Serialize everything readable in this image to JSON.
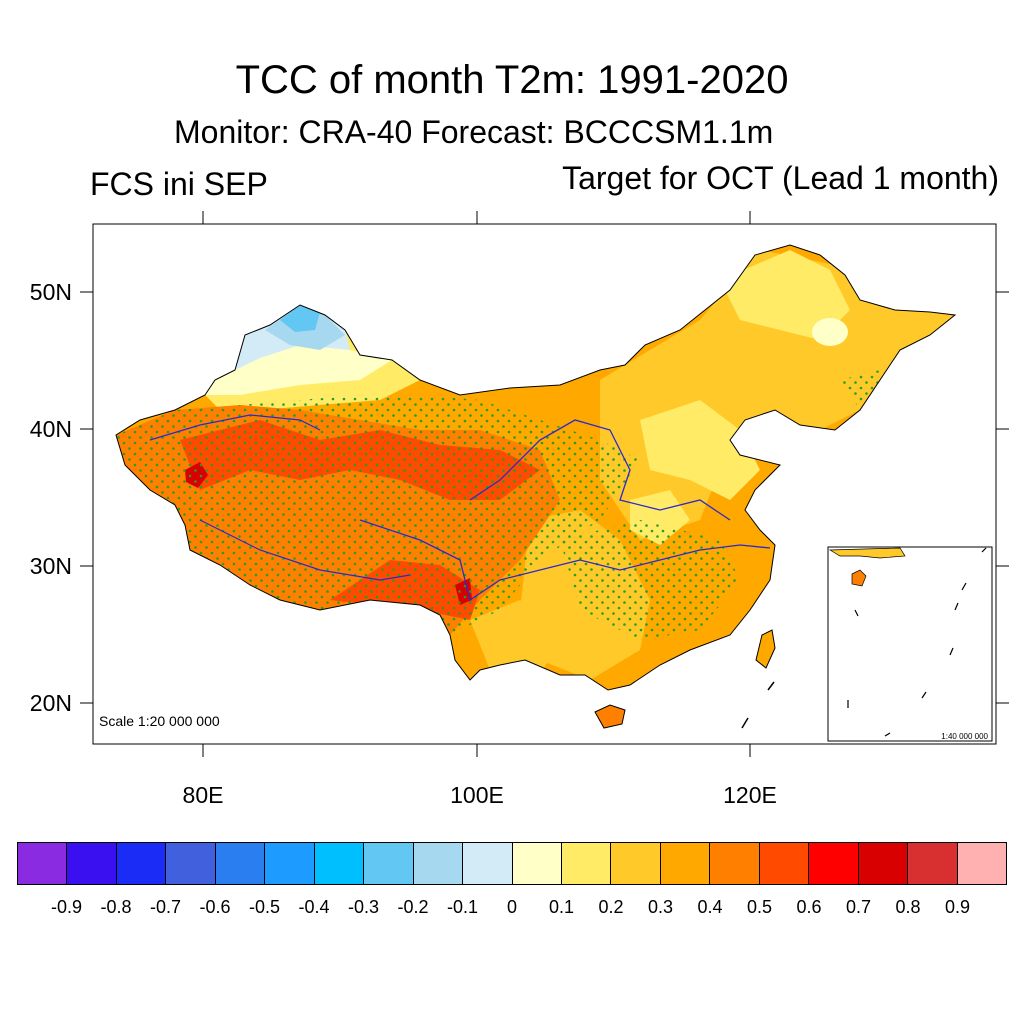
{
  "header": {
    "title": "TCC of month T2m: 1991-2020",
    "subtitle": "Monitor: CRA-40   Forecast: BCCCSM1.1m",
    "left_label": "FCS ini SEP",
    "right_label": "Target for OCT (Lead 1 month)"
  },
  "map": {
    "lat_labels": [
      "50N",
      "40N",
      "30N",
      "20N"
    ],
    "lon_labels": [
      "80E",
      "100E",
      "120E"
    ],
    "scale_label": "Scale 1:20 000 000",
    "inset_scale_label": "1:40 000 000"
  },
  "colorbar": {
    "colors": [
      "#8a2be2",
      "#3a10f0",
      "#1a2cf5",
      "#4060dd",
      "#2a7ef0",
      "#1e9bff",
      "#00bfff",
      "#63c7f3",
      "#a6d8f0",
      "#d2ebf7",
      "#ffffc8",
      "#ffeb66",
      "#ffc92a",
      "#ffa800",
      "#ff8000",
      "#ff4a00",
      "#ff0000",
      "#d80000",
      "#d83030",
      "#ffb0b0"
    ],
    "labels": [
      "-0.9",
      "-0.8",
      "-0.7",
      "-0.6",
      "-0.5",
      "-0.4",
      "-0.3",
      "-0.2",
      "-0.1",
      "0",
      "0.1",
      "0.2",
      "0.3",
      "0.4",
      "0.5",
      "0.6",
      "0.7",
      "0.8",
      "0.9"
    ]
  }
}
